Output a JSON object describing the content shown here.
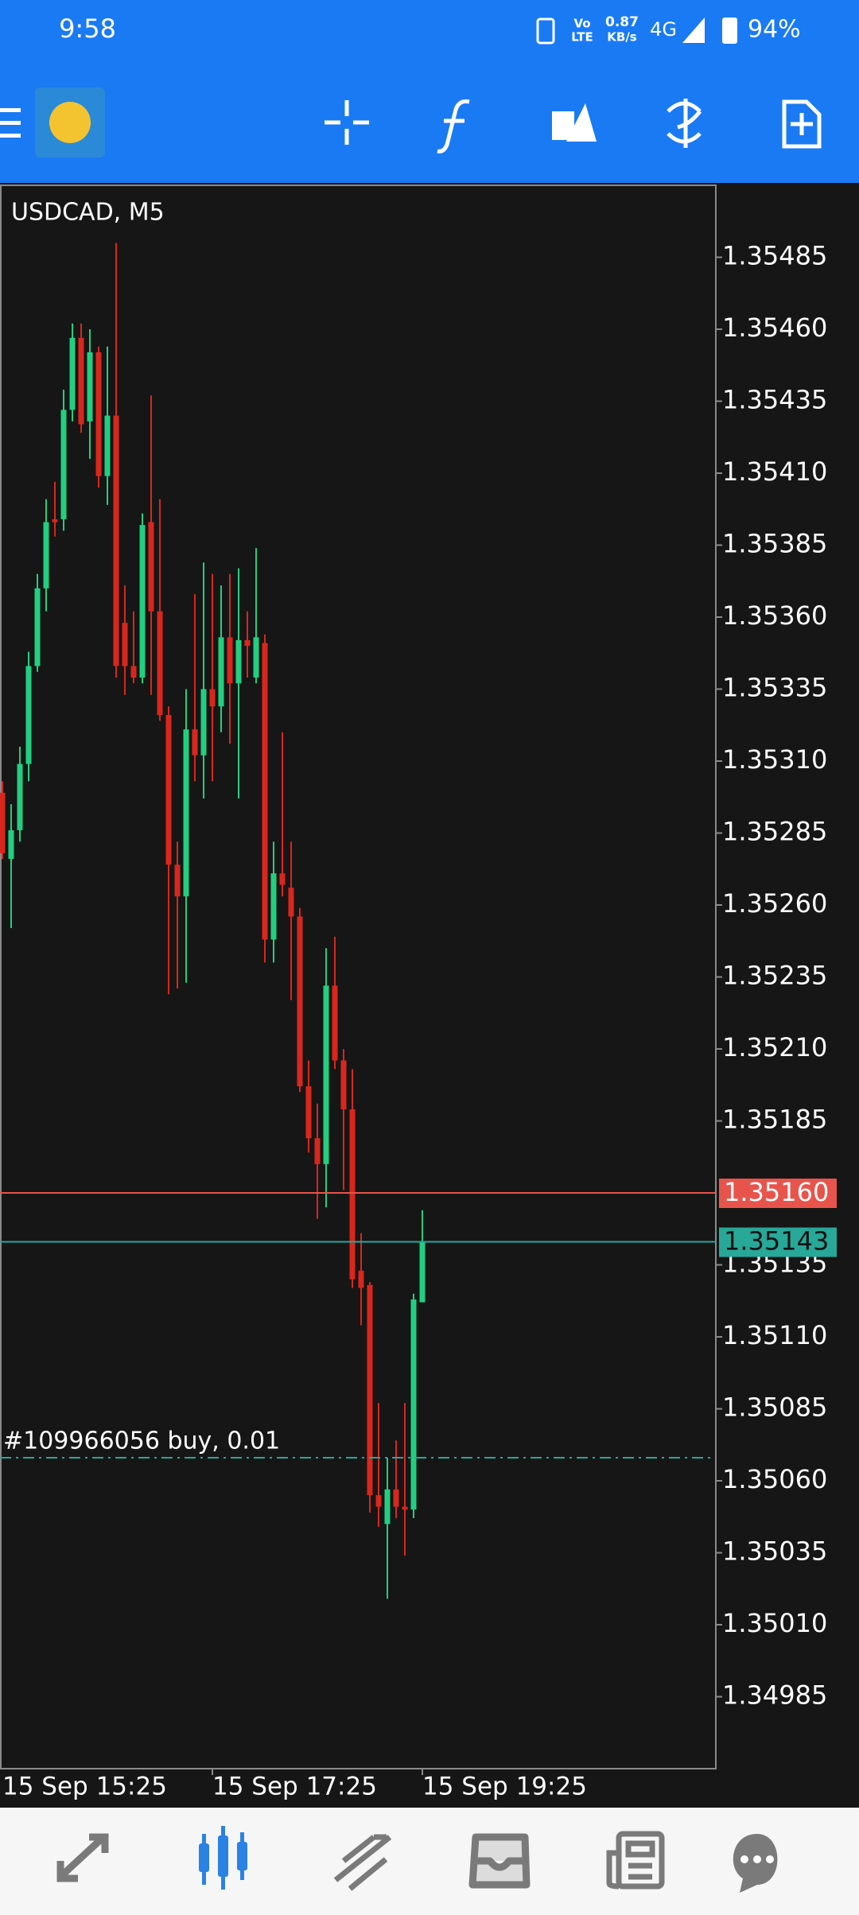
{
  "status_bar": {
    "time": "9:58",
    "volte_top": "Vo",
    "volte_bottom": "LTE",
    "speed": "0.87",
    "speed_unit": "KB/s",
    "network": "4G",
    "battery": "94%"
  },
  "chart_data": {
    "type": "candlestick",
    "title": "USDCAD, M5",
    "categories": [
      "15 Sep 15:25",
      null,
      null,
      null,
      null,
      null,
      null,
      null,
      null,
      null,
      null,
      null,
      null,
      null,
      null,
      null,
      null,
      null,
      null,
      null,
      null,
      null,
      null,
      null,
      "15 Sep 17:25",
      null,
      null,
      null,
      null,
      null,
      null,
      null,
      null,
      null,
      null,
      null,
      null,
      null,
      null,
      null,
      null,
      null,
      null,
      null,
      null,
      null,
      null,
      null,
      "15 Sep 19:25"
    ],
    "open": [
      1.35299,
      1.35276,
      1.35286,
      1.35309,
      1.35343,
      1.3537,
      1.35394,
      1.35394,
      1.35432,
      1.35457,
      1.35428,
      1.35452,
      1.35409,
      1.3543,
      1.35358,
      1.35343,
      1.35339,
      1.35393,
      1.35362,
      1.35326,
      1.35274,
      1.35263,
      1.35321,
      1.35312,
      1.35335,
      1.35329,
      1.35353,
      1.35337,
      1.35352,
      1.35339,
      1.35351,
      1.35248,
      1.35271,
      1.35266,
      1.35256,
      1.35197,
      1.35179,
      1.3517,
      1.35232,
      1.35206,
      1.35189,
      1.35133,
      1.35128,
      1.35055,
      1.35045,
      1.35057,
      1.35051,
      1.3505,
      1.35122
    ],
    "high": [
      1.35303,
      1.35295,
      1.35315,
      1.35348,
      1.35375,
      1.35401,
      1.35407,
      1.35439,
      1.35462,
      1.35462,
      1.3546,
      1.35454,
      1.35454,
      1.3549,
      1.35371,
      1.35362,
      1.35396,
      1.35437,
      1.35401,
      1.35329,
      1.35282,
      1.35335,
      1.35368,
      1.35379,
      1.35375,
      1.35371,
      1.35375,
      1.35377,
      1.35362,
      1.35384,
      1.35354,
      1.35282,
      1.3532,
      1.35282,
      1.35259,
      1.35206,
      1.35191,
      1.35245,
      1.35249,
      1.3521,
      1.35203,
      1.35146,
      1.35129,
      1.35087,
      1.35068,
      1.35074,
      1.35087,
      1.35125,
      1.35154
    ],
    "low": [
      1.35276,
      1.35252,
      1.35282,
      1.35303,
      1.35341,
      1.35362,
      1.35388,
      1.3539,
      1.35428,
      1.35424,
      1.35415,
      1.35405,
      1.35399,
      1.35339,
      1.35333,
      1.35337,
      1.35337,
      1.35333,
      1.35324,
      1.35229,
      1.35231,
      1.35233,
      1.35303,
      1.35297,
      1.35303,
      1.3532,
      1.35316,
      1.35297,
      1.35339,
      1.35337,
      1.3524,
      1.3524,
      1.35263,
      1.35227,
      1.35195,
      1.35174,
      1.35151,
      1.35155,
      1.35203,
      1.35161,
      1.35127,
      1.35114,
      1.35049,
      1.35044,
      1.35019,
      1.35047,
      1.35034,
      1.35047,
      1.35122
    ],
    "close": [
      1.35278,
      1.35286,
      1.35309,
      1.35343,
      1.3537,
      1.35393,
      1.35393,
      1.35432,
      1.35457,
      1.35427,
      1.35452,
      1.35409,
      1.3543,
      1.35343,
      1.35343,
      1.35339,
      1.35392,
      1.35362,
      1.35326,
      1.35274,
      1.35263,
      1.35321,
      1.35312,
      1.35335,
      1.35329,
      1.35353,
      1.35337,
      1.35352,
      1.3535,
      1.35353,
      1.35248,
      1.35271,
      1.35267,
      1.35256,
      1.35197,
      1.35179,
      1.3517,
      1.35232,
      1.35206,
      1.35189,
      1.3513,
      1.35127,
      1.35055,
      1.35051,
      1.35057,
      1.35051,
      1.3505,
      1.35123,
      1.35143
    ],
    "up_color": "#22cf80",
    "down_color": "#d9271d",
    "ylim": [
      1.3496,
      1.3551
    ],
    "yticks": [
      1.35485,
      {
        "value": 1.3546,
        "label": "1.35460"
      },
      1.35435,
      {
        "value": 1.3541,
        "label": "1.35410"
      },
      1.35385,
      {
        "value": 1.3536,
        "label": "1.35360"
      },
      1.35335,
      {
        "value": 1.3531,
        "label": "1.35310"
      },
      1.35285,
      {
        "value": 1.3526,
        "label": "1.35260"
      },
      1.35235,
      {
        "value": 1.3521,
        "label": "1.35210"
      },
      1.35185,
      1.35135,
      {
        "value": 1.3511,
        "label": "1.35110"
      },
      1.35085,
      {
        "value": 1.3506,
        "label": "1.35060"
      },
      1.35035,
      {
        "value": 1.3501,
        "label": "1.35010"
      },
      1.34985
    ],
    "price_lines": [
      {
        "value": 1.3516,
        "label": "1.35160",
        "color": "#e8544c"
      },
      {
        "value": 1.35143,
        "label": "1.35143",
        "color": "#27a899"
      }
    ],
    "order_line": {
      "value": 1.35068,
      "label": "#109966056 buy, 0.01",
      "color": "#27a899"
    }
  }
}
